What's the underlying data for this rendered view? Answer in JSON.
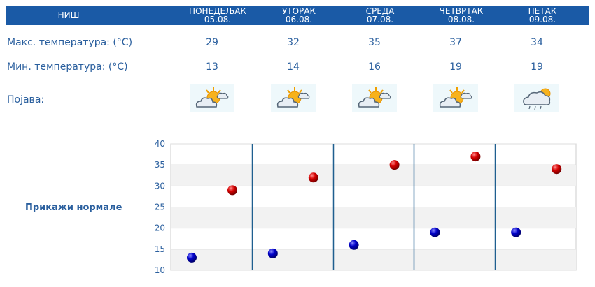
{
  "header": {
    "city": "НИШ",
    "days": [
      {
        "name": "ПОНЕДЕЉАК",
        "date": "05.08."
      },
      {
        "name": "УТОРАК",
        "date": "06.08."
      },
      {
        "name": "СРЕДА",
        "date": "07.08."
      },
      {
        "name": "ЧЕТВРТАК",
        "date": "08.08."
      },
      {
        "name": "ПЕТАК",
        "date": "09.08."
      }
    ]
  },
  "rows": {
    "max_label": "Макс. температура: (°C)",
    "min_label": "Мин. температура: (°C)",
    "icon_label": "Појава:",
    "max": [
      "29",
      "32",
      "35",
      "37",
      "34"
    ],
    "min": [
      "13",
      "14",
      "16",
      "19",
      "19"
    ],
    "icons": [
      "sun-behind-cloud-icon",
      "sun-behind-cloud-icon",
      "sun-behind-cloud-icon",
      "sun-behind-cloud-icon",
      "cloud-sun-rain-icon"
    ]
  },
  "normals_link": "Прикажи нормале",
  "colors": {
    "header_bg": "#1a5aa6",
    "text": "#2a5f9e",
    "max_marker": "#cc0000",
    "min_marker": "#0000bb"
  },
  "chart_data": {
    "type": "scatter",
    "categories": [
      "ПОНЕДЕЉАК",
      "УТОРАК",
      "СРЕДА",
      "ЧЕТВРТАК",
      "ПЕТАК"
    ],
    "series": [
      {
        "values": [
          29,
          32,
          35,
          37,
          34
        ]
      },
      {
        "values": [
          13,
          14,
          16,
          19,
          19
        ]
      }
    ],
    "yticks": [
      "10",
      "15",
      "20",
      "25",
      "30",
      "35",
      "40"
    ],
    "ylim": [
      10,
      40
    ],
    "grid": true
  }
}
